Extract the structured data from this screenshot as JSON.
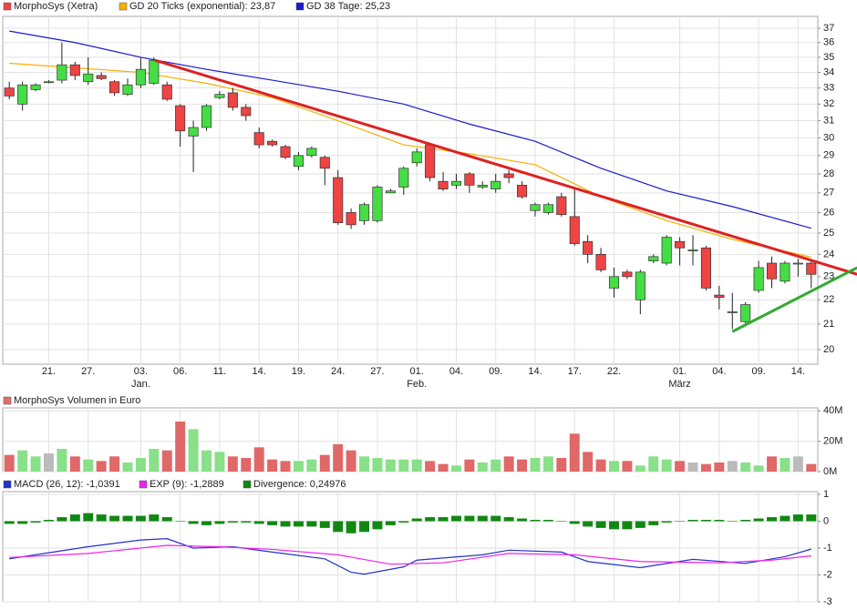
{
  "chart_data": [
    {
      "type": "candlestick",
      "name": "MorphoSys (Xetra)",
      "color_up": "#44dd44",
      "color_down": "#ee4444",
      "open": [
        33.0,
        32.0,
        32.9,
        33.4,
        33.5,
        34.5,
        33.4,
        33.8,
        33.4,
        32.6,
        33.2,
        33.3,
        33.2,
        31.9,
        30.1,
        30.6,
        32.4,
        32.7,
        31.8,
        30.3,
        29.8,
        29.5,
        28.4,
        29.0,
        28.9,
        27.8,
        26.0,
        25.6,
        25.6,
        27.0,
        27.3,
        28.6,
        29.6,
        27.6,
        27.4,
        28.0,
        27.3,
        27.2,
        28.0,
        27.4,
        26.1,
        26.0,
        26.8,
        25.8,
        24.6,
        24.0,
        22.5,
        23.2,
        22.0,
        23.7,
        23.6,
        24.6,
        24.2,
        24.3,
        22.2,
        21.5,
        21.1,
        22.4,
        23.6,
        22.8,
        23.6,
        23.6
      ],
      "high": [
        33.4,
        33.4,
        33.3,
        33.5,
        36.0,
        34.7,
        35.0,
        34.0,
        33.5,
        33.6,
        35.0,
        35.0,
        33.4,
        32.0,
        31.0,
        32.0,
        32.8,
        33.0,
        32.0,
        30.6,
        29.9,
        29.6,
        29.2,
        29.5,
        29.0,
        28.2,
        26.2,
        26.5,
        27.4,
        27.2,
        28.4,
        29.4,
        29.7,
        28.1,
        28.0,
        28.1,
        27.6,
        28.0,
        28.2,
        27.6,
        26.5,
        26.5,
        27.0,
        27.2,
        24.9,
        24.3,
        23.4,
        23.3,
        23.3,
        24.0,
        24.9,
        24.8,
        24.9,
        24.4,
        22.6,
        22.3,
        21.9,
        23.7,
        23.9,
        23.7,
        23.8,
        23.7
      ],
      "low": [
        32.3,
        31.6,
        32.8,
        33.3,
        33.3,
        33.5,
        33.2,
        33.5,
        32.5,
        32.5,
        33.0,
        33.2,
        32.2,
        29.5,
        28.1,
        30.4,
        32.3,
        31.6,
        31.0,
        29.4,
        29.5,
        28.8,
        28.2,
        28.9,
        27.4,
        25.4,
        25.2,
        25.4,
        25.5,
        27.0,
        26.9,
        28.4,
        27.6,
        27.1,
        27.2,
        27.0,
        27.2,
        27.0,
        27.5,
        26.7,
        25.8,
        25.9,
        25.8,
        24.4,
        23.6,
        23.2,
        22.1,
        22.9,
        21.4,
        23.6,
        23.5,
        23.5,
        23.5,
        22.4,
        21.6,
        20.8,
        21.0,
        22.3,
        22.5,
        22.7,
        23.0,
        22.5
      ],
      "close": [
        32.5,
        33.2,
        33.2,
        33.4,
        34.5,
        33.8,
        33.9,
        33.6,
        32.7,
        33.2,
        34.2,
        34.8,
        32.3,
        30.4,
        30.6,
        31.9,
        32.6,
        31.8,
        31.3,
        29.6,
        29.6,
        28.9,
        29.0,
        29.4,
        28.3,
        25.5,
        25.4,
        26.4,
        27.3,
        27.1,
        28.3,
        29.2,
        27.8,
        27.2,
        27.6,
        27.4,
        27.4,
        27.6,
        27.8,
        26.8,
        26.4,
        26.4,
        25.9,
        24.5,
        24.0,
        23.3,
        23.0,
        23.0,
        23.2,
        23.9,
        24.8,
        24.3,
        24.2,
        22.5,
        22.1,
        21.5,
        21.8,
        23.4,
        22.9,
        23.6,
        23.6,
        23.1
      ],
      "log": true,
      "grid": true,
      "ylim": [
        19.45,
        37.85
      ],
      "yticks": [
        20,
        21,
        22,
        23,
        24,
        25,
        26,
        27,
        28,
        29,
        30,
        31,
        32,
        33,
        34,
        35,
        36,
        37
      ],
      "xlim": [
        -0.5,
        61.5
      ],
      "xticks": [
        {
          "value": 3,
          "label": "21."
        },
        {
          "value": 6,
          "label": "27."
        },
        {
          "value": 10,
          "label": "03."
        },
        {
          "value": 13,
          "label": "06."
        },
        {
          "value": 16,
          "label": "11."
        },
        {
          "value": 19,
          "label": "14."
        },
        {
          "value": 22,
          "label": "19."
        },
        {
          "value": 25,
          "label": "24."
        },
        {
          "value": 28,
          "label": "27."
        },
        {
          "value": 31,
          "label": "01."
        },
        {
          "value": 34,
          "label": "04."
        },
        {
          "value": 37,
          "label": "09."
        },
        {
          "value": 40,
          "label": "14."
        },
        {
          "value": 43,
          "label": "17."
        },
        {
          "value": 46,
          "label": "22."
        },
        {
          "value": 51,
          "label": "01."
        },
        {
          "value": 54,
          "label": "04."
        },
        {
          "value": 57,
          "label": "09."
        },
        {
          "value": 60,
          "label": "14."
        }
      ],
      "month_labels": [
        {
          "value": 10,
          "label": "Jan."
        },
        {
          "value": 31,
          "label": "Feb."
        },
        {
          "value": 51,
          "label": "März"
        }
      ],
      "series": [
        {
          "name": "GD 20 Ticks (exponential): 23,87",
          "color": "#f5b000",
          "x": [
            0,
            5,
            10,
            15,
            20,
            25,
            30,
            35,
            40,
            45,
            50,
            55,
            61
          ],
          "values": [
            34.6,
            34.3,
            34.0,
            33.3,
            32.4,
            31.0,
            29.6,
            29.1,
            28.5,
            26.8,
            25.6,
            24.7,
            23.87
          ]
        },
        {
          "name": "GD 38 Tage: 25,23",
          "color": "#1a1acc",
          "x": [
            0,
            5,
            10,
            15,
            20,
            25,
            30,
            35,
            40,
            45,
            50,
            55,
            61
          ],
          "values": [
            36.8,
            36.0,
            35.0,
            34.2,
            33.5,
            32.8,
            32.0,
            30.8,
            29.8,
            28.3,
            27.1,
            26.3,
            25.23
          ]
        }
      ],
      "trendlines": [
        {
          "color": "#dd2222",
          "x": [
            11.08,
            64.5
          ],
          "values": [
            34.8,
            23.1
          ]
        },
        {
          "color": "#33aa33",
          "x": [
            55.0,
            64.5
          ],
          "values": [
            20.7,
            23.4
          ]
        }
      ]
    },
    {
      "type": "bar",
      "grid": true,
      "series": [
        {
          "name": "MorphoSys Volumen in Euro",
          "color": "#e07068",
          "color_up": "#88e088",
          "color_down": "#e06868",
          "color_flat": "#bbbbbb",
          "values": [
            11,
            14,
            10,
            12,
            15,
            10,
            8,
            7,
            10,
            6,
            9,
            15,
            14,
            33,
            28,
            14,
            13,
            10,
            9,
            16,
            8,
            7,
            7,
            8,
            11,
            18,
            14,
            10,
            9,
            8,
            8,
            8,
            7,
            5,
            4,
            8,
            6,
            8,
            10,
            8,
            9,
            10,
            9,
            25,
            13,
            8,
            7,
            7,
            4,
            10,
            8,
            7,
            6,
            5,
            6,
            7,
            6,
            4,
            10,
            9,
            10,
            5
          ]
        }
      ],
      "ylim": [
        0,
        42
      ],
      "yticks": [
        {
          "value": 0,
          "label": "0M"
        },
        {
          "value": 20,
          "label": "20M"
        },
        {
          "value": 40,
          "label": "40M"
        }
      ]
    },
    {
      "type": "line",
      "grid": true,
      "ylim": [
        -3,
        1.1
      ],
      "yticks": [
        -3,
        -2,
        -1,
        0,
        1
      ],
      "series": [
        {
          "name": "MACD (26, 12): -1,0391",
          "color": "#2233cc",
          "x": [
            0,
            6,
            10,
            12,
            14,
            17,
            20,
            24,
            26,
            27,
            30,
            31,
            36,
            38,
            42,
            44,
            48,
            52,
            56,
            59,
            61
          ],
          "values": [
            -1.4,
            -0.95,
            -0.7,
            -0.65,
            -1.0,
            -0.95,
            -1.15,
            -1.4,
            -1.9,
            -1.97,
            -1.7,
            -1.45,
            -1.25,
            -1.08,
            -1.15,
            -1.5,
            -1.73,
            -1.42,
            -1.57,
            -1.32,
            -1.0391
          ]
        },
        {
          "name": "EXP (9): -1,2889",
          "color": "#ee22ee",
          "x": [
            0,
            6,
            12,
            16,
            20,
            25,
            29,
            33,
            38,
            43,
            48,
            54,
            58,
            61
          ],
          "values": [
            -1.35,
            -1.2,
            -0.9,
            -0.95,
            -1.05,
            -1.25,
            -1.6,
            -1.55,
            -1.2,
            -1.25,
            -1.5,
            -1.55,
            -1.45,
            -1.2889
          ]
        },
        {
          "name": "Divergence: 0,24976",
          "type": "bar",
          "color": "#118811",
          "values": [
            -0.1,
            -0.1,
            -0.05,
            0.05,
            0.15,
            0.25,
            0.3,
            0.25,
            0.2,
            0.2,
            0.2,
            0.25,
            0.15,
            0,
            -0.1,
            -0.15,
            -0.1,
            -0.05,
            -0.05,
            -0.1,
            -0.15,
            -0.2,
            -0.2,
            -0.2,
            -0.25,
            -0.4,
            -0.45,
            -0.4,
            -0.3,
            -0.15,
            -0.05,
            0.1,
            0.15,
            0.15,
            0.2,
            0.2,
            0.2,
            0.2,
            0.15,
            0.1,
            0.05,
            0.05,
            0,
            -0.1,
            -0.2,
            -0.25,
            -0.3,
            -0.3,
            -0.25,
            -0.15,
            -0.05,
            0,
            0.05,
            0.05,
            0.05,
            0,
            0.05,
            0.1,
            0.15,
            0.2,
            0.25,
            0.24976
          ]
        }
      ]
    }
  ]
}
